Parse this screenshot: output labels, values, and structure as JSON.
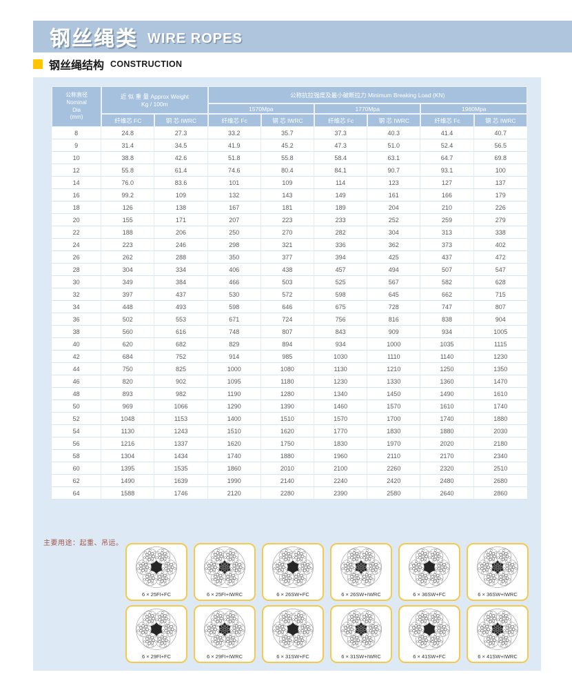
{
  "header": {
    "title_zh": "钢丝绳类",
    "title_en": "WIRE ROPES",
    "section_zh": "钢丝绳结构",
    "section_en": "CONSTRUCTION"
  },
  "colors": {
    "band_blue": "#aec5dd",
    "panel_blue": "#dde9f4",
    "header_cell_blue": "#a6c1de",
    "accent_yellow": "#ffc600",
    "card_border_yellow": "#f5c84e",
    "usage_note_red": "#a0584c"
  },
  "table": {
    "dia_header_lines": [
      "公称直径",
      "Nominal",
      "Dia",
      "(mm)"
    ],
    "weight_header_line1": "近 似 重 量 Approx Weight",
    "weight_header_line2": "Kg / 100m",
    "breaking_header": "公称抗拉强度及最小破断拉力 Minimum Breaking Load (KN)",
    "grade_labels": [
      "1570Mpa",
      "1770Mpa",
      "1960Mpa"
    ],
    "weight_sub_labels": [
      "纤维芯 FC",
      "钢 芯 IWRC"
    ],
    "grade_sub_labels": [
      "纤维芯 Fc",
      "钢 芯 IWRC"
    ],
    "rows": [
      [
        "8",
        "24.8",
        "27.3",
        "33.2",
        "35.7",
        "37.3",
        "40.3",
        "41.4",
        "40.7"
      ],
      [
        "9",
        "31.4",
        "34.5",
        "41.9",
        "45.2",
        "47.3",
        "51.0",
        "52.4",
        "56.5"
      ],
      [
        "10",
        "38.8",
        "42.6",
        "51.8",
        "55.8",
        "58.4",
        "63.1",
        "64.7",
        "69.8"
      ],
      [
        "12",
        "55.8",
        "61.4",
        "74.6",
        "80.4",
        "84.1",
        "90.7",
        "93.1",
        "100"
      ],
      [
        "14",
        "76.0",
        "83.6",
        "101",
        "109",
        "114",
        "123",
        "127",
        "137"
      ],
      [
        "16",
        "99.2",
        "109",
        "132",
        "143",
        "149",
        "161",
        "166",
        "179"
      ],
      [
        "18",
        "126",
        "138",
        "167",
        "181",
        "189",
        "204",
        "210",
        "226"
      ],
      [
        "20",
        "155",
        "171",
        "207",
        "223",
        "233",
        "252",
        "259",
        "279"
      ],
      [
        "22",
        "188",
        "206",
        "250",
        "270",
        "282",
        "304",
        "313",
        "338"
      ],
      [
        "24",
        "223",
        "246",
        "298",
        "321",
        "336",
        "362",
        "373",
        "402"
      ],
      [
        "26",
        "262",
        "288",
        "350",
        "377",
        "394",
        "425",
        "437",
        "472"
      ],
      [
        "28",
        "304",
        "334",
        "406",
        "438",
        "457",
        "494",
        "507",
        "547"
      ],
      [
        "30",
        "349",
        "384",
        "466",
        "503",
        "525",
        "567",
        "582",
        "628"
      ],
      [
        "32",
        "397",
        "437",
        "530",
        "572",
        "598",
        "645",
        "662",
        "715"
      ],
      [
        "34",
        "448",
        "493",
        "598",
        "646",
        "675",
        "728",
        "747",
        "807"
      ],
      [
        "36",
        "502",
        "553",
        "671",
        "724",
        "756",
        "816",
        "838",
        "904"
      ],
      [
        "38",
        "560",
        "616",
        "748",
        "807",
        "843",
        "909",
        "934",
        "1005"
      ],
      [
        "40",
        "620",
        "682",
        "829",
        "894",
        "934",
        "1000",
        "1035",
        "1115"
      ],
      [
        "42",
        "684",
        "752",
        "914",
        "985",
        "1030",
        "1110",
        "1140",
        "1230"
      ],
      [
        "44",
        "750",
        "825",
        "1000",
        "1080",
        "1130",
        "1210",
        "1250",
        "1350"
      ],
      [
        "46",
        "820",
        "902",
        "1095",
        "1180",
        "1230",
        "1330",
        "1360",
        "1470"
      ],
      [
        "48",
        "893",
        "982",
        "1190",
        "1280",
        "1340",
        "1450",
        "1490",
        "1610"
      ],
      [
        "50",
        "969",
        "1066",
        "1290",
        "1390",
        "1460",
        "1570",
        "1610",
        "1740"
      ],
      [
        "52",
        "1048",
        "1153",
        "1400",
        "1510",
        "1570",
        "1700",
        "1740",
        "1880"
      ],
      [
        "54",
        "1130",
        "1243",
        "1510",
        "1620",
        "1770",
        "1830",
        "1880",
        "2030"
      ],
      [
        "56",
        "1216",
        "1337",
        "1620",
        "1750",
        "1830",
        "1970",
        "2020",
        "2180"
      ],
      [
        "58",
        "1304",
        "1434",
        "1740",
        "1880",
        "1960",
        "2110",
        "2170",
        "2340"
      ],
      [
        "60",
        "1395",
        "1535",
        "1860",
        "2010",
        "2100",
        "2260",
        "2320",
        "2510"
      ],
      [
        "62",
        "1490",
        "1639",
        "1990",
        "2140",
        "2240",
        "2420",
        "2480",
        "2680"
      ],
      [
        "64",
        "1588",
        "1746",
        "2120",
        "2280",
        "2390",
        "2580",
        "2640",
        "2860"
      ]
    ]
  },
  "usage_note": "主要用途：起重、吊运。",
  "diagrams": {
    "row1": [
      "6 × 25FI+FC",
      "6 × 25FI+IWRC",
      "6 × 26SW+FC",
      "6 × 26SW+IWRC",
      "6 × 36SW+FC",
      "6 × 36SW+IWRC"
    ],
    "row2": [
      "6 × 29FI+FC",
      "6 × 29FI+IWRC",
      "6 × 31SW+FC",
      "6 × 31SW+IWRC",
      "6 × 41SW+FC",
      "6 × 41SW+IWRC"
    ]
  }
}
